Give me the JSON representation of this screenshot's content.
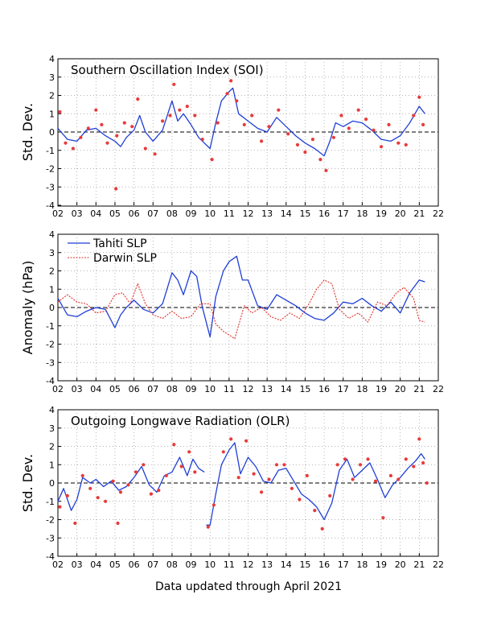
{
  "footer": "Data updated through April 2021",
  "colors": {
    "tahiti": "#1f3fd6",
    "darwin": "#e0302a",
    "points": "#e83a3a",
    "grid": "#9a9a9a"
  },
  "chart_data": [
    {
      "type": "line",
      "title": "Southern Oscillation Index (SOI)",
      "ylabel": "Std. Dev.",
      "xlabel": "",
      "xlim": [
        2002,
        2022
      ],
      "ylim": [
        -4,
        4
      ],
      "xticks": [
        "02",
        "03",
        "04",
        "05",
        "06",
        "07",
        "08",
        "09",
        "10",
        "11",
        "12",
        "13",
        "14",
        "15",
        "16",
        "17",
        "18",
        "19",
        "20",
        "21",
        "22"
      ],
      "yticks": [
        "-4",
        "-3",
        "-2",
        "-1",
        "0",
        "1",
        "2",
        "3",
        "4"
      ],
      "grid": true,
      "series": [
        {
          "kind": "line",
          "color": "#1f3fd6",
          "x": [
            2002.0,
            2002.5,
            2003.0,
            2003.5,
            2004.0,
            2004.5,
            2005.0,
            2005.3,
            2005.6,
            2006.0,
            2006.3,
            2006.6,
            2007.0,
            2007.5,
            2008.0,
            2008.3,
            2008.6,
            2009.0,
            2009.4,
            2009.7,
            2010.0,
            2010.3,
            2010.6,
            2011.0,
            2011.2,
            2011.5,
            2012.0,
            2012.5,
            2013.0,
            2013.5,
            2014.0,
            2014.5,
            2015.0,
            2015.5,
            2016.0,
            2016.3,
            2016.6,
            2017.0,
            2017.5,
            2018.0,
            2018.5,
            2019.0,
            2019.5,
            2020.0,
            2020.5,
            2021.0,
            2021.3
          ],
          "y": [
            0.2,
            -0.4,
            -0.5,
            0.1,
            0.2,
            -0.2,
            -0.5,
            -0.8,
            -0.3,
            0.1,
            0.9,
            0.0,
            -0.5,
            0.1,
            1.7,
            0.6,
            1.0,
            0.4,
            -0.3,
            -0.6,
            -0.9,
            0.5,
            1.7,
            2.2,
            2.4,
            1.0,
            0.6,
            0.2,
            0.0,
            0.8,
            0.3,
            -0.2,
            -0.6,
            -0.9,
            -1.3,
            -0.5,
            0.5,
            0.3,
            0.6,
            0.5,
            0.1,
            -0.4,
            -0.5,
            -0.2,
            0.5,
            1.4,
            1.0
          ]
        },
        {
          "kind": "scatter",
          "color": "#e83a3a",
          "x": [
            2002.1,
            2002.4,
            2002.8,
            2003.2,
            2003.6,
            2004.0,
            2004.3,
            2004.6,
            2005.1,
            2005.5,
            2005.9,
            2006.2,
            2006.6,
            2007.1,
            2007.5,
            2007.9,
            2008.1,
            2008.4,
            2008.8,
            2009.2,
            2009.6,
            2010.1,
            2010.4,
            2010.9,
            2011.1,
            2011.4,
            2011.8,
            2012.2,
            2012.7,
            2013.1,
            2013.6,
            2014.1,
            2014.6,
            2015.0,
            2015.4,
            2015.8,
            2016.1,
            2016.5,
            2016.9,
            2017.3,
            2017.8,
            2018.2,
            2018.6,
            2019.0,
            2019.4,
            2019.9,
            2020.3,
            2020.7,
            2021.0,
            2021.2,
            2005.05
          ],
          "y": [
            1.1,
            -0.6,
            -0.9,
            -0.3,
            0.2,
            1.2,
            0.4,
            -0.6,
            -0.2,
            0.5,
            0.3,
            1.8,
            -0.9,
            -1.2,
            0.6,
            0.9,
            2.6,
            1.2,
            1.4,
            0.9,
            -0.4,
            -1.5,
            0.5,
            2.1,
            2.8,
            1.7,
            0.4,
            0.9,
            -0.5,
            0.3,
            1.2,
            -0.1,
            -0.7,
            -1.1,
            -0.4,
            -1.5,
            -2.1,
            -0.3,
            0.9,
            0.2,
            1.2,
            0.7,
            0.1,
            -0.8,
            0.4,
            -0.6,
            -0.7,
            0.9,
            1.9,
            0.4,
            -3.1
          ]
        }
      ]
    },
    {
      "type": "line",
      "title": "",
      "ylabel": "Anomaly (hPa)",
      "xlabel": "",
      "xlim": [
        2002,
        2022
      ],
      "ylim": [
        -4,
        4
      ],
      "xticks": [
        "02",
        "03",
        "04",
        "05",
        "06",
        "07",
        "08",
        "09",
        "10",
        "11",
        "12",
        "13",
        "14",
        "15",
        "16",
        "17",
        "18",
        "19",
        "20",
        "21",
        "22"
      ],
      "yticks": [
        "-4",
        "-3",
        "-2",
        "-1",
        "0",
        "1",
        "2",
        "3",
        "4"
      ],
      "grid": true,
      "legend": {
        "placement": "top-left",
        "entries": [
          "Tahiti SLP",
          "Darwin SLP"
        ]
      },
      "series": [
        {
          "name": "Tahiti SLP",
          "kind": "line",
          "color": "#1f3fd6",
          "x": [
            2002.0,
            2002.5,
            2003.0,
            2003.5,
            2004.0,
            2004.5,
            2005.0,
            2005.3,
            2005.6,
            2006.0,
            2006.5,
            2007.0,
            2007.5,
            2008.0,
            2008.3,
            2008.6,
            2009.0,
            2009.3,
            2009.6,
            2010.0,
            2010.3,
            2010.7,
            2011.0,
            2011.4,
            2011.7,
            2012.0,
            2012.5,
            2013.0,
            2013.5,
            2014.0,
            2014.5,
            2015.0,
            2015.5,
            2016.0,
            2016.5,
            2017.0,
            2017.5,
            2018.0,
            2018.5,
            2019.0,
            2019.5,
            2020.0,
            2020.5,
            2021.0,
            2021.3
          ],
          "y": [
            0.5,
            -0.4,
            -0.5,
            -0.2,
            0.0,
            -0.1,
            -1.1,
            -0.4,
            0.0,
            0.4,
            -0.1,
            -0.3,
            0.2,
            1.9,
            1.5,
            0.7,
            2.0,
            1.7,
            0.0,
            -1.6,
            0.6,
            2.0,
            2.5,
            2.8,
            1.5,
            1.5,
            0.1,
            -0.1,
            0.7,
            0.4,
            0.1,
            -0.3,
            -0.6,
            -0.7,
            -0.3,
            0.3,
            0.2,
            0.5,
            0.1,
            -0.2,
            0.3,
            -0.3,
            0.8,
            1.5,
            1.4
          ]
        },
        {
          "name": "Darwin SLP",
          "kind": "line",
          "color": "#e0302a",
          "x": [
            2002.0,
            2002.5,
            2003.0,
            2003.5,
            2004.0,
            2004.5,
            2005.0,
            2005.4,
            2005.8,
            2006.2,
            2006.6,
            2007.0,
            2007.5,
            2008.0,
            2008.5,
            2009.0,
            2009.5,
            2010.0,
            2010.3,
            2010.7,
            2011.0,
            2011.3,
            2011.8,
            2012.2,
            2012.7,
            2013.2,
            2013.7,
            2014.2,
            2014.7,
            2015.2,
            2015.6,
            2016.0,
            2016.4,
            2016.8,
            2017.3,
            2017.8,
            2018.3,
            2018.8,
            2019.3,
            2019.8,
            2020.2,
            2020.7,
            2021.0,
            2021.3
          ],
          "y": [
            0.3,
            0.7,
            0.3,
            0.2,
            -0.3,
            -0.2,
            0.7,
            0.8,
            0.2,
            1.3,
            0.2,
            -0.4,
            -0.6,
            -0.2,
            -0.6,
            -0.5,
            0.2,
            0.2,
            -0.9,
            -1.3,
            -1.5,
            -1.7,
            0.1,
            -0.3,
            0.0,
            -0.5,
            -0.7,
            -0.3,
            -0.6,
            0.2,
            1.0,
            1.5,
            1.3,
            -0.1,
            -0.6,
            -0.3,
            -0.8,
            0.3,
            0.1,
            0.8,
            1.1,
            0.5,
            -0.7,
            -0.8
          ]
        }
      ]
    },
    {
      "type": "line",
      "title": "Outgoing Longwave Radiation (OLR)",
      "ylabel": "Std. Dev.",
      "xlabel": "",
      "xlim": [
        2002,
        2022
      ],
      "ylim": [
        -4,
        4
      ],
      "xticks": [
        "02",
        "03",
        "04",
        "05",
        "06",
        "07",
        "08",
        "09",
        "10",
        "11",
        "12",
        "13",
        "14",
        "15",
        "16",
        "17",
        "18",
        "19",
        "20",
        "21",
        "22"
      ],
      "yticks": [
        "-4",
        "-3",
        "-2",
        "-1",
        "0",
        "1",
        "2",
        "3",
        "4"
      ],
      "grid": true,
      "series": [
        {
          "kind": "line",
          "color": "#1f3fd6",
          "x": [
            2002.0,
            2002.3,
            2002.7,
            2003.0,
            2003.3,
            2003.7,
            2004.0,
            2004.4,
            2004.8,
            2005.2,
            2005.6,
            2006.0,
            2006.4,
            2006.8,
            2007.2,
            2007.6,
            2008.0,
            2008.4,
            2008.8,
            2009.1,
            2009.4,
            2009.7
          ],
          "y": [
            -1.0,
            -0.3,
            -1.5,
            -0.9,
            0.3,
            0.0,
            0.2,
            -0.2,
            0.1,
            -0.4,
            -0.2,
            0.3,
            0.9,
            -0.1,
            -0.5,
            0.4,
            0.6,
            1.4,
            0.4,
            1.3,
            0.8,
            0.6
          ]
        },
        {
          "kind": "line",
          "color": "#1f3fd6",
          "x": [
            2009.8,
            2010.0,
            2010.3,
            2010.6,
            2011.0,
            2011.3,
            2011.6,
            2012.0,
            2012.4,
            2012.8,
            2013.2,
            2013.6,
            2014.0,
            2014.4,
            2014.8,
            2015.2,
            2015.6,
            2016.0,
            2016.4,
            2016.8,
            2017.2,
            2017.6,
            2018.0,
            2018.4,
            2018.8,
            2019.2,
            2019.6,
            2020.0,
            2020.4,
            2020.8,
            2021.1,
            2021.3
          ],
          "y": [
            -2.3,
            -2.3,
            -0.6,
            1.0,
            1.8,
            2.2,
            0.5,
            1.4,
            0.9,
            0.1,
            0.0,
            0.7,
            0.8,
            0.1,
            -0.6,
            -0.9,
            -1.3,
            -2.0,
            -1.1,
            0.7,
            1.3,
            0.3,
            0.7,
            1.1,
            0.2,
            -0.8,
            -0.1,
            0.3,
            0.8,
            1.2,
            1.6,
            1.3
          ]
        },
        {
          "kind": "scatter",
          "color": "#e83a3a",
          "x": [
            2002.1,
            2002.5,
            2002.9,
            2003.3,
            2003.7,
            2004.1,
            2004.5,
            2004.9,
            2005.3,
            2005.7,
            2006.1,
            2006.5,
            2006.9,
            2007.3,
            2007.7,
            2008.1,
            2008.5,
            2008.9,
            2009.2,
            2009.9,
            2010.2,
            2010.7,
            2011.1,
            2011.5,
            2011.9,
            2012.3,
            2012.7,
            2013.1,
            2013.5,
            2013.9,
            2014.3,
            2014.7,
            2015.1,
            2015.5,
            2015.9,
            2016.3,
            2016.7,
            2017.1,
            2017.5,
            2017.9,
            2018.3,
            2018.7,
            2019.1,
            2019.5,
            2019.9,
            2020.3,
            2020.7,
            2021.0,
            2021.2,
            2021.4,
            2005.15
          ],
          "y": [
            -1.3,
            -0.7,
            -2.2,
            0.4,
            -0.3,
            -0.8,
            -1.0,
            0.1,
            -0.5,
            -0.1,
            0.6,
            1.0,
            -0.6,
            -0.4,
            0.4,
            2.1,
            0.9,
            1.7,
            0.6,
            -2.4,
            -1.2,
            1.7,
            2.4,
            0.3,
            2.3,
            0.5,
            -0.5,
            0.2,
            1.0,
            1.0,
            -0.3,
            -0.9,
            0.4,
            -1.5,
            -2.5,
            -0.7,
            1.0,
            1.3,
            0.2,
            1.0,
            1.3,
            0.1,
            -1.9,
            0.4,
            0.2,
            1.3,
            0.9,
            2.4,
            1.1,
            0.0,
            -2.2
          ]
        }
      ]
    }
  ]
}
